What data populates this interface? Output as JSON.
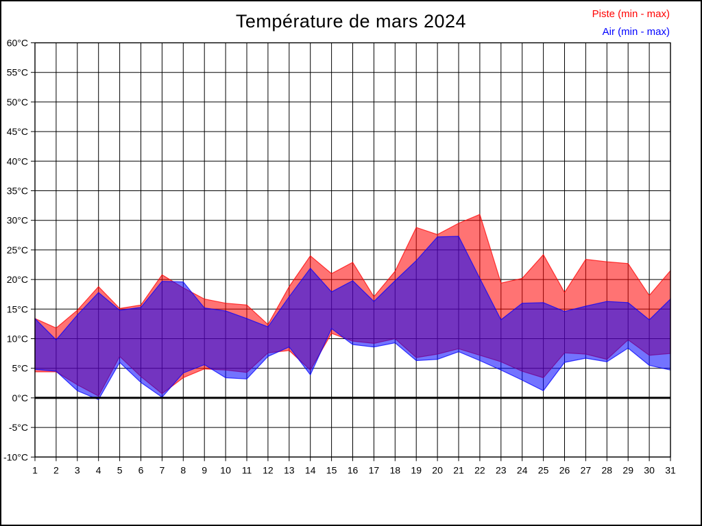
{
  "chart_data": {
    "type": "area",
    "title": "Température de mars 2024",
    "categories": [
      1,
      2,
      3,
      4,
      5,
      6,
      7,
      8,
      9,
      10,
      11,
      12,
      13,
      14,
      15,
      16,
      17,
      18,
      19,
      20,
      21,
      22,
      23,
      24,
      25,
      26,
      27,
      28,
      29,
      30,
      31
    ],
    "x_tick_labels": [
      "1",
      "2",
      "3",
      "4",
      "5",
      "6",
      "7",
      "8",
      "9",
      "10",
      "11",
      "12",
      "13",
      "14",
      "15",
      "16",
      "17",
      "18",
      "19",
      "20",
      "21",
      "22",
      "23",
      "24",
      "25",
      "26",
      "27",
      "28",
      "29",
      "30",
      "31"
    ],
    "y_tick_labels": [
      "60°C",
      "55°C",
      "50°C",
      "45°C",
      "40°C",
      "35°C",
      "30°C",
      "25°C",
      "20°C",
      "15°C",
      "10°C",
      "5°C",
      "0°C",
      "-5°C",
      "-10°C"
    ],
    "ylim": [
      -10,
      60
    ],
    "y_tick_step": 5,
    "grid": true,
    "zero_line_at": 0,
    "legend_position": "top-right",
    "series": [
      {
        "name": "Piste (min - max)",
        "color": "#ff0000",
        "fill": "rgba(255,0,0,0.55)",
        "min": [
          4.4,
          4.4,
          2.2,
          0.3,
          7.0,
          3.6,
          0.7,
          3.4,
          4.9,
          4.7,
          4.3,
          7.6,
          8.0,
          4.7,
          10.9,
          9.6,
          9.2,
          10.0,
          6.8,
          7.4,
          8.3,
          7.2,
          6.1,
          4.5,
          3.4,
          7.6,
          7.4,
          6.5,
          9.8,
          7.2,
          7.5
        ],
        "max": [
          13.4,
          11.8,
          14.8,
          18.8,
          15.1,
          15.7,
          20.8,
          18.6,
          16.7,
          16.0,
          15.7,
          12.4,
          18.8,
          24.0,
          21.0,
          22.9,
          17.1,
          21.4,
          28.8,
          27.6,
          29.5,
          31.0,
          19.4,
          20.2,
          24.2,
          17.8,
          23.4,
          23.0,
          22.7,
          17.3,
          21.5
        ]
      },
      {
        "name": "Air (min - max)",
        "color": "#0000ff",
        "fill": "rgba(0,0,255,0.55)",
        "min": [
          4.8,
          4.5,
          1.2,
          -0.3,
          6.0,
          2.6,
          0.1,
          4.2,
          5.6,
          3.4,
          3.2,
          7.0,
          8.6,
          3.9,
          11.7,
          9.0,
          8.6,
          9.3,
          6.3,
          6.5,
          7.8,
          6.3,
          4.7,
          3.0,
          1.2,
          6.0,
          6.7,
          6.1,
          8.4,
          5.5,
          4.7
        ],
        "max": [
          13.4,
          9.8,
          14.0,
          17.8,
          14.8,
          15.3,
          19.7,
          19.6,
          15.2,
          14.7,
          13.4,
          12.0,
          17.1,
          21.9,
          17.9,
          19.8,
          16.3,
          19.8,
          23.2,
          27.2,
          27.3,
          20.2,
          13.2,
          16.0,
          16.1,
          14.6,
          15.5,
          16.3,
          16.1,
          13.2,
          16.7
        ]
      }
    ]
  }
}
